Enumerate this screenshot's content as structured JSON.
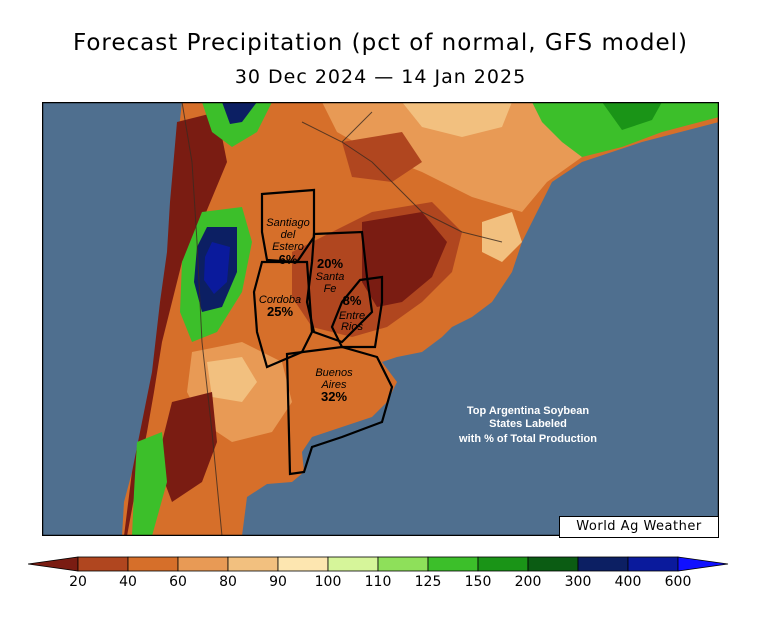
{
  "title": "Forecast Precipitation (pct of normal, GFS model)",
  "subtitle": "30 Dec 2024 — 14 Jan 2025",
  "credit": "World Ag Weather",
  "note": [
    "Top Argentina Soybean",
    "States Labeled",
    "with % of Total Production"
  ],
  "states": [
    {
      "name": [
        "Santiago",
        "del",
        "Estero"
      ],
      "pct": "6%"
    },
    {
      "name": [
        "Santa",
        "Fe"
      ],
      "pct": "20%"
    },
    {
      "name": [
        "Cordoba"
      ],
      "pct": "25%"
    },
    {
      "name": [
        "Entre",
        "Rios"
      ],
      "pct": "8%"
    },
    {
      "name": [
        "Buenos",
        "Aires"
      ],
      "pct": "32%"
    }
  ],
  "legend": {
    "labels": [
      "20",
      "40",
      "60",
      "80",
      "90",
      "100",
      "110",
      "125",
      "150",
      "200",
      "300",
      "400",
      "600"
    ],
    "colors": [
      "#7a1c12",
      "#b0461f",
      "#d66f2a",
      "#e89a55",
      "#f2c07f",
      "#fde6b0",
      "#d6f59a",
      "#8ee05a",
      "#3cbf2a",
      "#1a9417",
      "#0b5c13",
      "#0c1f63",
      "#0a1a9c",
      "#1010ff"
    ]
  },
  "colors": {
    "ocean": "#4f6f8f",
    "dry_dark": "#7a1c12",
    "dry": "#b0461f",
    "dry_mid": "#d66f2a",
    "dry_light": "#e89a55",
    "near_normal": "#f2c07f",
    "wet": "#3cbf2a",
    "very_wet": "#0a1a9c"
  }
}
